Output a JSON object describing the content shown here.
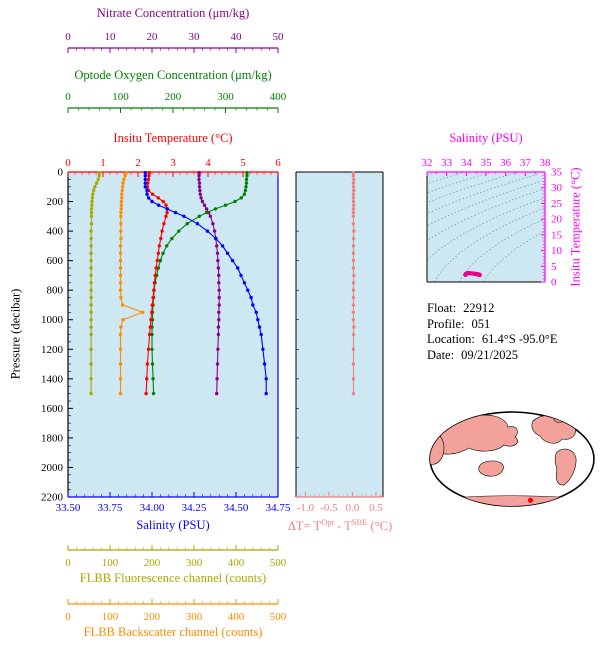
{
  "colors": {
    "page_bg": "#ffffff",
    "plot_bg": "#cde7f3",
    "pressure": "#000000",
    "nitrate": "#8b008b",
    "oxygen": "#008000",
    "temperature": "#ff0000",
    "salinity": "#0000ff",
    "fluorescence": "#a8a800",
    "backscatter": "#ff8c00",
    "delta": "#f08080",
    "ts_axis": "#ff00ff",
    "ts_data": "#ec008c",
    "contour": "#579b9b",
    "land": "#f2a29b",
    "ocean": "#ffffff",
    "marker": "#ff0000"
  },
  "info": {
    "rows": [
      {
        "label": "Float:",
        "value": "22912"
      },
      {
        "label": "Profile:",
        "value": "051"
      },
      {
        "label": "Location:",
        "value": "61.4°S -95.0°E"
      },
      {
        "label": "Date:",
        "value": "09/21/2025"
      }
    ]
  },
  "map": {
    "projection": "oval_world_map",
    "center_lon": 180,
    "marker": {
      "lat": -61.4,
      "lon": -95.0
    }
  },
  "chart_data": [
    {
      "id": "main_profiles",
      "type": "line",
      "ylabel": "Pressure (decibar)",
      "ylim": [
        0,
        2200
      ],
      "yticks": [
        0,
        200,
        400,
        600,
        800,
        1000,
        1200,
        1400,
        1600,
        1800,
        2000,
        2200
      ],
      "y_minor_step": 50,
      "axes": [
        {
          "id": "nitrate",
          "label": "Nitrate Concentration (μm/kg)",
          "range": [
            0,
            50
          ],
          "ticks": [
            0,
            10,
            20,
            30,
            40,
            50
          ],
          "minor": 2
        },
        {
          "id": "oxygen",
          "label": "Optode Oxygen Concentration (μm/kg)",
          "range": [
            0,
            400
          ],
          "ticks": [
            0,
            100,
            200,
            300,
            400
          ],
          "minor": 20
        },
        {
          "id": "temperature",
          "label": "Insitu Temperature (°C)",
          "range": [
            0,
            6
          ],
          "ticks": [
            0,
            1,
            2,
            3,
            4,
            5,
            6
          ],
          "minor": 0.2
        },
        {
          "id": "salinity",
          "label": "Salinity (PSU)",
          "range": [
            33.5,
            34.75
          ],
          "ticks": [
            "33.50",
            "33.75",
            "34.00",
            "34.25",
            "34.50",
            "34.75"
          ],
          "minor": 0.05
        },
        {
          "id": "fluorescence",
          "label": "FLBB Fluorescence channel (counts)",
          "range": [
            0,
            500
          ],
          "ticks": [
            0,
            100,
            200,
            300,
            400,
            500
          ],
          "minor": 20
        },
        {
          "id": "backscatter",
          "label": "FLBB Backscatter channel (counts)",
          "range": [
            0,
            500
          ],
          "ticks": [
            0,
            100,
            200,
            300,
            400,
            500
          ],
          "minor": 20
        }
      ],
      "pressure": [
        5,
        25,
        50,
        75,
        100,
        125,
        150,
        175,
        200,
        225,
        250,
        275,
        300,
        350,
        400,
        450,
        500,
        550,
        600,
        650,
        700,
        750,
        800,
        850,
        900,
        950,
        1000,
        1050,
        1100,
        1200,
        1300,
        1400,
        1500
      ],
      "series": [
        {
          "axis": "fluorescence",
          "name": "FLBB Fluorescence channel",
          "values": [
            75,
            74,
            72,
            68,
            64,
            61,
            59,
            58,
            57,
            57,
            56,
            56,
            56,
            56,
            55,
            55,
            55,
            55,
            55,
            55,
            55,
            55,
            55,
            55,
            55,
            55,
            55,
            55,
            55,
            55,
            55,
            55,
            55
          ]
        },
        {
          "axis": "backscatter",
          "name": "FLBB Backscatter channel",
          "values": [
            140,
            136,
            133,
            131,
            130,
            129,
            128,
            128,
            127,
            127,
            127,
            126,
            126,
            126,
            126,
            126,
            125,
            125,
            125,
            125,
            125,
            125,
            125,
            126,
            130,
            178,
            131,
            126,
            125,
            125,
            125,
            125,
            125
          ]
        },
        {
          "axis": "nitrate",
          "name": "Nitrate Concentration",
          "values": [
            31.2,
            31.2,
            31.2,
            31.3,
            31.3,
            31.4,
            31.5,
            31.7,
            32.0,
            32.5,
            33.0,
            33.5,
            33.9,
            34.5,
            34.9,
            35.2,
            35.4,
            35.6,
            35.7,
            35.8,
            35.9,
            35.9,
            36.0,
            36.0,
            36.0,
            35.9,
            35.9,
            35.8,
            35.8,
            35.7,
            35.6,
            35.5,
            35.4
          ]
        },
        {
          "axis": "oxygen",
          "name": "Optode Oxygen Concentration",
          "values": [
            341,
            341,
            340,
            340,
            339,
            338,
            336,
            330,
            318,
            300,
            281,
            264,
            250,
            227,
            211,
            198,
            188,
            181,
            176,
            172,
            169,
            166,
            164,
            163,
            162,
            161,
            161,
            160,
            160,
            160,
            161,
            162,
            163
          ]
        },
        {
          "axis": "temperature",
          "name": "Insitu Temperature",
          "values": [
            2.32,
            2.31,
            2.3,
            2.28,
            2.27,
            2.3,
            2.42,
            2.58,
            2.72,
            2.8,
            2.84,
            2.83,
            2.8,
            2.74,
            2.69,
            2.65,
            2.61,
            2.58,
            2.55,
            2.52,
            2.49,
            2.47,
            2.45,
            2.43,
            2.41,
            2.39,
            2.37,
            2.35,
            2.33,
            2.3,
            2.27,
            2.25,
            2.23
          ]
        },
        {
          "axis": "salinity",
          "name": "Salinity",
          "values": [
            33.96,
            33.96,
            33.96,
            33.96,
            33.96,
            33.97,
            33.97,
            33.98,
            34.0,
            34.04,
            34.09,
            34.14,
            34.19,
            34.27,
            34.33,
            34.38,
            34.42,
            34.45,
            34.48,
            34.51,
            34.53,
            34.55,
            34.57,
            34.59,
            34.6,
            34.62,
            34.63,
            34.64,
            34.65,
            34.66,
            34.67,
            34.68,
            34.68
          ]
        }
      ]
    },
    {
      "id": "delta_t",
      "type": "scatter",
      "xlabel_parts": {
        "prefix": "ΔT= T",
        "sup1": "Opt",
        "mid": " - T",
        "sup2": "SBE",
        "suffix": " (°C)"
      },
      "xlim": [
        -1.2,
        0.65
      ],
      "xticks": [
        "-1.0",
        "-0.5",
        "0.0",
        "0.5"
      ],
      "x_minor_step": 0.1,
      "pressure": "shared_with_main_profiles",
      "values": [
        0.02,
        0.02,
        0.03,
        0.02,
        0.02,
        0.03,
        0.02,
        0.02,
        0.02,
        0.03,
        0.02,
        0.02,
        0.02,
        0.02,
        0.03,
        0.02,
        0.02,
        0.02,
        0.02,
        0.02,
        0.03,
        0.02,
        0.02,
        0.02,
        0.02,
        0.02,
        0.02,
        0.03,
        0.02,
        0.02,
        0.02,
        0.02,
        0.02
      ]
    },
    {
      "id": "ts_diagram",
      "type": "scatter",
      "xlabel": "Salinity (PSU)",
      "ylabel": "Insitu Temperature (°C)",
      "xlim": [
        32,
        38
      ],
      "xticks": [
        32,
        33,
        34,
        35,
        36,
        37,
        38
      ],
      "ylim": [
        0,
        35
      ],
      "yticks": [
        0,
        5,
        10,
        15,
        20,
        25,
        30,
        35
      ],
      "contour_sigma_levels": [
        18,
        19,
        20,
        21,
        22,
        23,
        24,
        25,
        26,
        27,
        28
      ],
      "points_source": "salinity_vs_temperature_from_main_profiles"
    }
  ]
}
